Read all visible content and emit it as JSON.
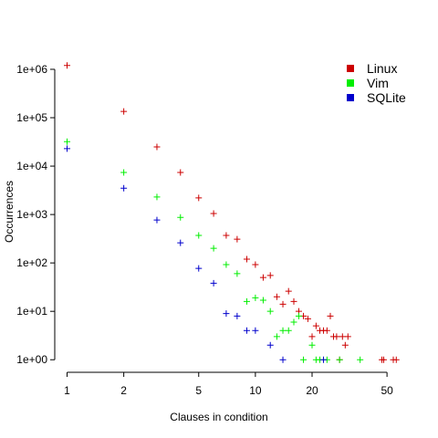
{
  "chart_data": {
    "type": "scatter",
    "x_label": "Clauses in condition",
    "y_label": "Occurrences",
    "log_x": true,
    "log_y": true,
    "legend": "top-right",
    "marker": "+",
    "xlim": [
      0.86,
      66
    ],
    "ylim": [
      0.55,
      2000000
    ],
    "xticks": [
      1,
      2,
      5,
      10,
      20,
      50
    ],
    "yticks": [
      {
        "value": 1,
        "label": "1e+00"
      },
      {
        "value": 10,
        "label": "1e+01"
      },
      {
        "value": 100,
        "label": "1e+02"
      },
      {
        "value": 1000,
        "label": "1e+03"
      },
      {
        "value": 10000,
        "label": "1e+04"
      },
      {
        "value": 100000,
        "label": "1e+05"
      },
      {
        "value": 1000000,
        "label": "1e+06"
      }
    ],
    "series": [
      {
        "name": "Linux",
        "color": "#cc0000",
        "x": [
          1,
          2,
          3,
          4,
          5,
          6,
          7,
          8,
          9,
          10,
          11,
          12,
          13,
          14,
          15,
          16,
          17,
          18,
          19,
          20,
          21,
          22,
          23,
          24,
          25,
          26,
          27,
          28,
          29,
          30,
          31,
          47,
          48,
          54,
          56
        ],
        "values": [
          1200000,
          135000,
          25000,
          7400,
          2200,
          1050,
          370,
          310,
          120,
          92,
          50,
          55,
          20,
          14,
          26,
          16,
          10,
          8,
          7,
          3,
          5,
          4,
          4,
          4,
          8,
          3,
          3,
          1,
          3,
          2,
          3,
          1,
          1,
          1,
          1
        ]
      },
      {
        "name": "Vim",
        "color": "#00ee00",
        "x": [
          1,
          2,
          3,
          4,
          5,
          6,
          7,
          8,
          9,
          10,
          11,
          12,
          13,
          14,
          15,
          16,
          17,
          18,
          20,
          21,
          22,
          24,
          28,
          36
        ],
        "values": [
          32000,
          7400,
          2300,
          870,
          370,
          200,
          92,
          60,
          16,
          19,
          17,
          10,
          3,
          4,
          4,
          6,
          8,
          1,
          2,
          1,
          1,
          1,
          1,
          1
        ]
      },
      {
        "name": "SQLite",
        "color": "#0000cc",
        "x": [
          1,
          2,
          3,
          4,
          5,
          6,
          7,
          8,
          9,
          10,
          12,
          14,
          23
        ],
        "values": [
          23000,
          3500,
          770,
          260,
          77,
          38,
          9,
          8,
          4,
          4,
          2,
          1,
          1
        ]
      }
    ]
  }
}
